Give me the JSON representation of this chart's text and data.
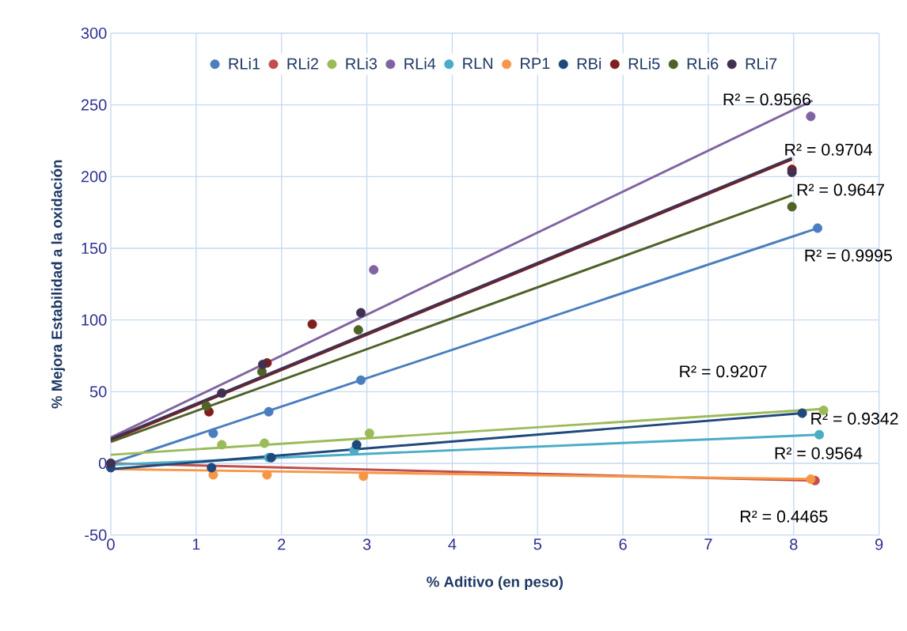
{
  "chart_data": {
    "type": "scatter",
    "xlabel": "% Aditivo  (en peso)",
    "ylabel": "% Mejora Estabilidad a la oxidación",
    "xlim": [
      0,
      9
    ],
    "ylim": [
      -50,
      300
    ],
    "xticks": [
      0,
      1,
      2,
      3,
      4,
      5,
      6,
      7,
      8,
      9
    ],
    "yticks": [
      -50,
      0,
      50,
      100,
      150,
      200,
      250,
      300
    ],
    "grid": true,
    "legend": "top",
    "marker": "circle",
    "series": [
      {
        "name": "RLi1",
        "color": "#4a7ebf",
        "x": [
          0,
          1.2,
          1.85,
          2.93,
          8.28
        ],
        "values": [
          0,
          21,
          36,
          58,
          164
        ]
      },
      {
        "name": "RLi2",
        "color": "#c0504d",
        "x": [
          8.25
        ],
        "values": [
          -12
        ]
      },
      {
        "name": "RLi3",
        "color": "#9bbb59",
        "x": [
          1.3,
          1.8,
          3.03,
          8.35
        ],
        "values": [
          13,
          14,
          21,
          37
        ]
      },
      {
        "name": "RLi4",
        "color": "#8064a2",
        "x": [
          3.08,
          8.2
        ],
        "values": [
          135,
          242
        ]
      },
      {
        "name": "RLN",
        "color": "#4bacc6",
        "x": [
          1.85,
          2.85,
          8.3
        ],
        "values": [
          4,
          9,
          20
        ]
      },
      {
        "name": "RP1",
        "color": "#f79646",
        "x": [
          1.2,
          1.83,
          2.96,
          8.2
        ],
        "values": [
          -8,
          -8,
          -9,
          -11
        ]
      },
      {
        "name": "RBi",
        "color": "#1f497d",
        "x": [
          0,
          1.18,
          1.88,
          2.88,
          8.1
        ],
        "values": [
          -3,
          -3,
          4,
          13,
          35
        ]
      },
      {
        "name": "RLi5",
        "color": "#7f1f1f",
        "x": [
          1.15,
          1.83,
          2.36,
          7.98
        ],
        "values": [
          36,
          70,
          97,
          205
        ]
      },
      {
        "name": "RLi6",
        "color": "#4f6228",
        "x": [
          1.12,
          1.77,
          2.9,
          7.98
        ],
        "values": [
          40,
          64,
          93,
          179
        ]
      },
      {
        "name": "RLi7",
        "color": "#403152",
        "x": [
          0,
          1.3,
          1.78,
          2.93,
          7.98
        ],
        "values": [
          0,
          49,
          69,
          105,
          203
        ]
      },
      {
        "type": "line",
        "marker": "none",
        "color": "#4a7ebf",
        "x": [
          0,
          8.28
        ],
        "values": [
          0,
          164
        ]
      },
      {
        "type": "line",
        "marker": "none",
        "color": "#c0504d",
        "x": [
          0,
          8.25
        ],
        "values": [
          0,
          -12
        ]
      },
      {
        "type": "line",
        "marker": "none",
        "color": "#9bbb59",
        "x": [
          0,
          8.35
        ],
        "values": [
          6,
          38
        ]
      },
      {
        "type": "line",
        "marker": "none",
        "color": "#8064a2",
        "x": [
          0,
          8.22
        ],
        "values": [
          18,
          253
        ]
      },
      {
        "type": "line",
        "marker": "none",
        "color": "#4bacc6",
        "x": [
          0,
          8.3
        ],
        "values": [
          -1,
          20
        ]
      },
      {
        "type": "line",
        "marker": "none",
        "color": "#f79646",
        "x": [
          0,
          8.2
        ],
        "values": [
          -4,
          -11
        ]
      },
      {
        "type": "line",
        "marker": "none",
        "color": "#1f497d",
        "x": [
          0,
          8.1
        ],
        "values": [
          -4,
          35
        ]
      },
      {
        "type": "line",
        "marker": "none",
        "color": "#7f1f1f",
        "x": [
          0,
          7.98
        ],
        "values": [
          16,
          212
        ]
      },
      {
        "type": "line",
        "marker": "none",
        "color": "#4f6228",
        "x": [
          0,
          7.98
        ],
        "values": [
          15,
          187
        ]
      },
      {
        "type": "line",
        "marker": "none",
        "color": "#403152",
        "x": [
          0,
          7.98
        ],
        "values": [
          17,
          213
        ]
      }
    ],
    "annotations": [
      "R² = 0.9566",
      "R² = 0.9704",
      "R² = 0.9647",
      "R² = 0.9995",
      "R² = 0.9207",
      "R² = 0.9342",
      "R² = 0.9564",
      "R² = 0.4465"
    ]
  }
}
